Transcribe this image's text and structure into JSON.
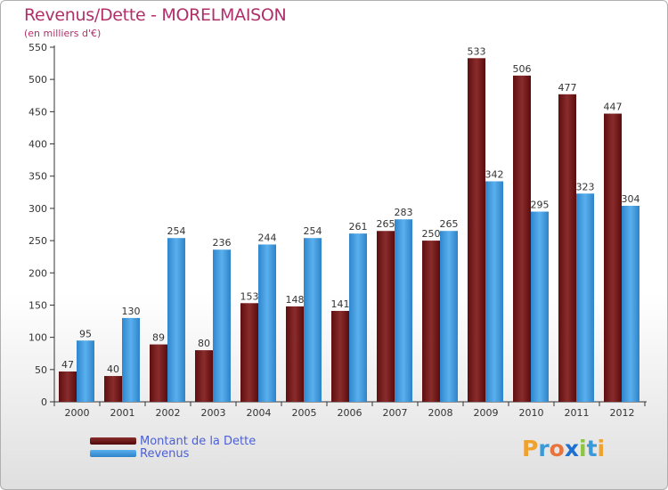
{
  "title": "Revenus/Dette - MORELMAISON",
  "subtitle": "(en milliers d'€)",
  "logo": {
    "text": "Proxiti",
    "letters": [
      {
        "ch": "P",
        "color": "#f0a22e"
      },
      {
        "ch": "r",
        "color": "#3a9ad9"
      },
      {
        "ch": "o",
        "color": "#e8743b"
      },
      {
        "ch": "x",
        "color": "#1d6fd1"
      },
      {
        "ch": "i",
        "color": "#8cc63f"
      },
      {
        "ch": "t",
        "color": "#3a9ad9"
      },
      {
        "ch": "i",
        "color": "#f0a22e"
      }
    ]
  },
  "chart_data": {
    "type": "bar",
    "categories": [
      "2000",
      "2001",
      "2002",
      "2003",
      "2004",
      "2005",
      "2006",
      "2007",
      "2008",
      "2009",
      "2010",
      "2011",
      "2012"
    ],
    "series": [
      {
        "name": "Montant de la Dette",
        "color": "#7a1a1a",
        "values": [
          47,
          40,
          89,
          80,
          153,
          148,
          141,
          265,
          250,
          533,
          506,
          477,
          447
        ]
      },
      {
        "name": "Revenus",
        "color": "#3f9fe0",
        "values": [
          95,
          130,
          254,
          236,
          244,
          254,
          261,
          283,
          265,
          342,
          295,
          323,
          304
        ]
      }
    ],
    "yticks": [
      0,
      50,
      100,
      150,
      200,
      250,
      300,
      350,
      400,
      450,
      500,
      550
    ],
    "ylim": [
      0,
      550
    ],
    "grid": false,
    "legend_position": "bottom-left"
  }
}
